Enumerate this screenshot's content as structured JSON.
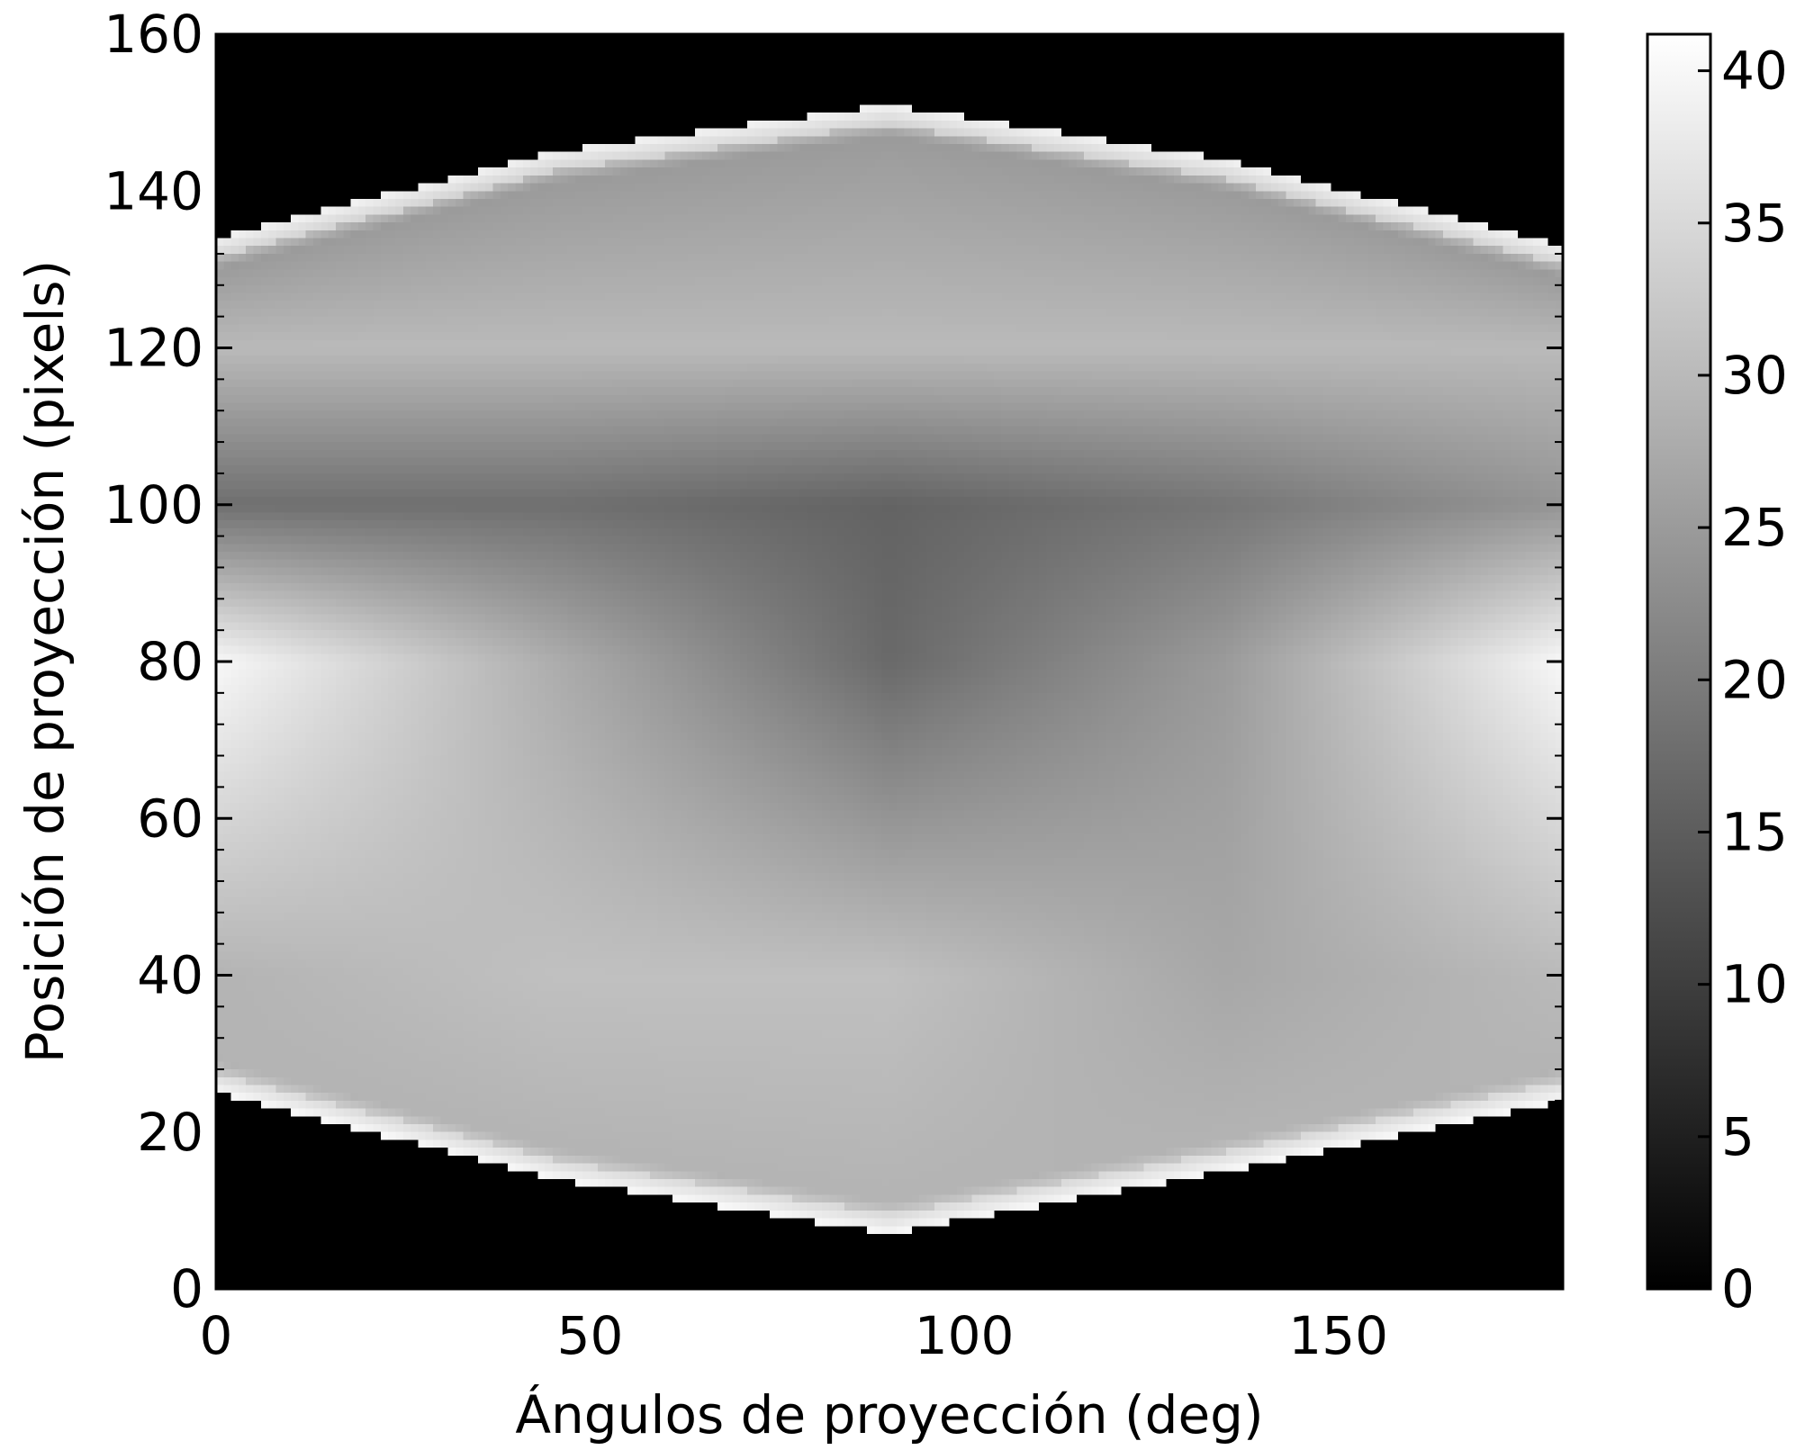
{
  "chart_data": {
    "type": "heatmap",
    "title": "",
    "xlabel": "Ángulos de proyección (deg)",
    "ylabel": "Posición de proyección (pixels)",
    "xlim": [
      0,
      180
    ],
    "ylim": [
      0,
      160
    ],
    "x_ticks": [
      "0",
      "50",
      "100",
      "150"
    ],
    "y_ticks": [
      "0",
      "20",
      "40",
      "60",
      "80",
      "100",
      "120",
      "140",
      "160"
    ],
    "colormap": "gray",
    "colorbar": {
      "vmin": 0,
      "vmax": 41.2,
      "ticks": [
        "0",
        "5",
        "10",
        "15",
        "20",
        "25",
        "30",
        "35",
        "40"
      ]
    },
    "grid": false,
    "data_description": "Sinogram of a projected object: signal occupies positions between a lower edge (~25 px at 0°, ~7 px at 90°, ~24 px at 180°) and an upper edge (~134 px at 0°, ~151 px at 90°, ~133 px at 180°); bright rims (~38–41) along both edges, bright lobes (~40) near position 80 at 0° and 180°, a dark core (~17) near position 80 around 90°, and 0 outside the object.",
    "sample_profile": {
      "angles_deg": [
        0,
        45,
        90,
        135,
        180
      ],
      "lower_edge": [
        25,
        14,
        7,
        15,
        24
      ],
      "upper_edge": [
        134,
        145,
        151,
        144,
        133
      ],
      "value_at_position_80": [
        40,
        28,
        17,
        25,
        40
      ],
      "value_at_position_100": [
        18,
        18,
        16,
        19,
        24
      ],
      "value_at_position_40": [
        29,
        31,
        31,
        27,
        30
      ]
    }
  }
}
